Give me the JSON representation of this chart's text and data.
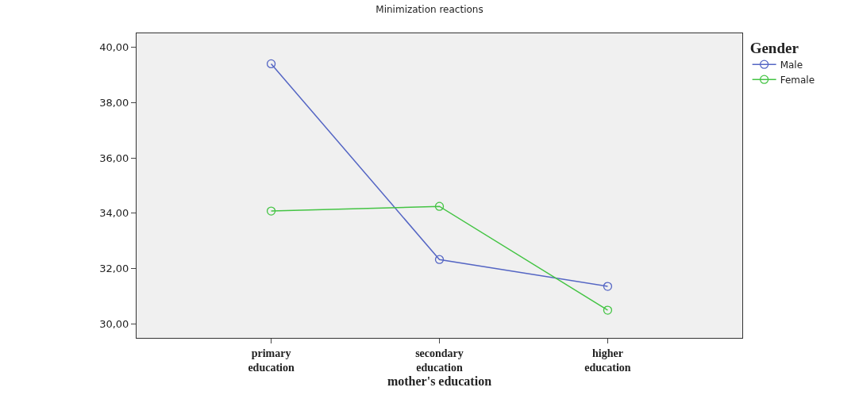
{
  "chart_data": {
    "type": "line",
    "title": "Minimization reactions",
    "xlabel": "mother's education",
    "legend_title": "Gender",
    "categories": [
      "primary education",
      "secondary education",
      "higher education"
    ],
    "series": [
      {
        "name": "Male",
        "color": "#5566c4",
        "values": [
          39.4,
          32.33,
          31.36
        ]
      },
      {
        "name": "Female",
        "color": "#44c444",
        "values": [
          34.08,
          34.25,
          30.5
        ]
      }
    ],
    "ylim": [
      29.5,
      40.5
    ],
    "yticks": [
      {
        "value": 30,
        "label": "30,00"
      },
      {
        "value": 32,
        "label": "32,00"
      },
      {
        "value": 34,
        "label": "34,00"
      },
      {
        "value": 36,
        "label": "36,00"
      },
      {
        "value": 38,
        "label": "38,00"
      },
      {
        "value": 40,
        "label": "40,00"
      }
    ],
    "marker": "circle",
    "grid": false,
    "legend": "top right"
  }
}
